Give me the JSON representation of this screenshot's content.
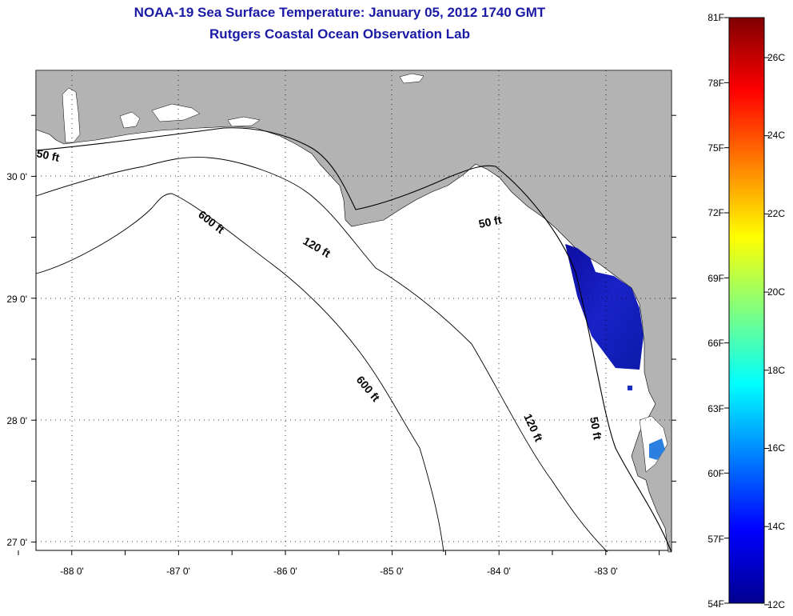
{
  "title": {
    "line1": "NOAA-19 Sea Surface Temperature:  January 05, 2012 1740 GMT",
    "line2": "Rutgers Coastal Ocean Observation Lab"
  },
  "colors": {
    "title": "#1a1aa6",
    "land": "#b3b3b3",
    "ocean": "#ffffff",
    "sst_cold": "#0a1aa8",
    "sst_patch_light": "#2a7fe0"
  },
  "map": {
    "lon_ticks": [
      "-88 0'",
      "-87 0'",
      "-86 0'",
      "-85 0'",
      "-84 0'",
      "-83 0'"
    ],
    "lat_ticks": [
      "30 0'",
      "29 0'",
      "28 0'",
      "27 0'"
    ],
    "grid": true,
    "contours": [
      {
        "label": "50 ft"
      },
      {
        "label": "120 ft"
      },
      {
        "label": "600 ft"
      }
    ],
    "contour_labels": [
      "50 ft",
      "600 ft",
      "120 ft",
      "50 ft",
      "600 ft",
      "120 ft",
      "50 ft"
    ]
  },
  "colorbar": {
    "fahrenheit_labels": [
      "81F",
      "78F",
      "75F",
      "72F",
      "69F",
      "66F",
      "63F",
      "60F",
      "57F",
      "54F"
    ],
    "celsius_labels": [
      "26C",
      "24C",
      "22C",
      "20C",
      "18C",
      "16C",
      "14C",
      "12C"
    ],
    "colormap": "jet"
  }
}
